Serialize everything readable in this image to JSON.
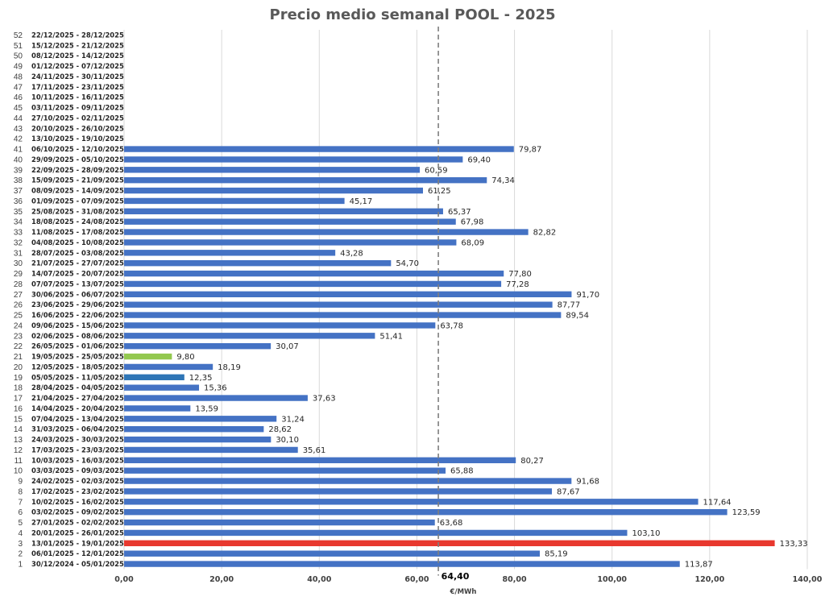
{
  "chart_data": {
    "type": "bar",
    "orientation": "horizontal",
    "title": "Precio medio semanal POOL - 2025",
    "xlabel": "€/MWh",
    "xlim": [
      0,
      140
    ],
    "x_ticks": [
      "0,00",
      "20,00",
      "40,00",
      "60,00",
      "80,00",
      "100,00",
      "120,00",
      "140,00"
    ],
    "grid": true,
    "legend": "none",
    "average": {
      "value": 64.4,
      "label": "64,40"
    },
    "colors": {
      "default": "#4472c4",
      "highlight_max": "#e8382e",
      "highlight_min": "#92c84f",
      "highlight_week19": "#2e75b6",
      "average_line": "#7f7f7f"
    },
    "weeks": [
      {
        "n": "52",
        "range": "22/12/2025 - 28/12/2025",
        "value": null,
        "label": ""
      },
      {
        "n": "51",
        "range": "15/12/2025 - 21/12/2025",
        "value": null,
        "label": ""
      },
      {
        "n": "50",
        "range": "08/12/2025 - 14/12/2025",
        "value": null,
        "label": ""
      },
      {
        "n": "49",
        "range": "01/12/2025 - 07/12/2025",
        "value": null,
        "label": ""
      },
      {
        "n": "48",
        "range": "24/11/2025 - 30/11/2025",
        "value": null,
        "label": ""
      },
      {
        "n": "47",
        "range": "17/11/2025 - 23/11/2025",
        "value": null,
        "label": ""
      },
      {
        "n": "46",
        "range": "10/11/2025 - 16/11/2025",
        "value": null,
        "label": ""
      },
      {
        "n": "45",
        "range": "03/11/2025 - 09/11/2025",
        "value": null,
        "label": ""
      },
      {
        "n": "44",
        "range": "27/10/2025 - 02/11/2025",
        "value": null,
        "label": ""
      },
      {
        "n": "43",
        "range": "20/10/2025 - 26/10/2025",
        "value": null,
        "label": ""
      },
      {
        "n": "42",
        "range": "13/10/2025 - 19/10/2025",
        "value": null,
        "label": ""
      },
      {
        "n": "41",
        "range": "06/10/2025 - 12/10/2025",
        "value": 79.87,
        "label": "79,87"
      },
      {
        "n": "40",
        "range": "29/09/2025 - 05/10/2025",
        "value": 69.4,
        "label": "69,40"
      },
      {
        "n": "39",
        "range": "22/09/2025 - 28/09/2025",
        "value": 60.59,
        "label": "60,59"
      },
      {
        "n": "38",
        "range": "15/09/2025 - 21/09/2025",
        "value": 74.34,
        "label": "74,34"
      },
      {
        "n": "37",
        "range": "08/09/2025 - 14/09/2025",
        "value": 61.25,
        "label": "61,25"
      },
      {
        "n": "36",
        "range": "01/09/2025 - 07/09/2025",
        "value": 45.17,
        "label": "45,17"
      },
      {
        "n": "35",
        "range": "25/08/2025 - 31/08/2025",
        "value": 65.37,
        "label": "65,37"
      },
      {
        "n": "34",
        "range": "18/08/2025 - 24/08/2025",
        "value": 67.98,
        "label": "67,98"
      },
      {
        "n": "33",
        "range": "11/08/2025 - 17/08/2025",
        "value": 82.82,
        "label": "82,82"
      },
      {
        "n": "32",
        "range": "04/08/2025 - 10/08/2025",
        "value": 68.09,
        "label": "68,09"
      },
      {
        "n": "31",
        "range": "28/07/2025 - 03/08/2025",
        "value": 43.28,
        "label": "43,28"
      },
      {
        "n": "30",
        "range": "21/07/2025 - 27/07/2025",
        "value": 54.7,
        "label": "54,70"
      },
      {
        "n": "29",
        "range": "14/07/2025 - 20/07/2025",
        "value": 77.8,
        "label": "77,80"
      },
      {
        "n": "28",
        "range": "07/07/2025 - 13/07/2025",
        "value": 77.28,
        "label": "77,28"
      },
      {
        "n": "27",
        "range": "30/06/2025 - 06/07/2025",
        "value": 91.7,
        "label": "91,70"
      },
      {
        "n": "26",
        "range": "23/06/2025 - 29/06/2025",
        "value": 87.77,
        "label": "87,77"
      },
      {
        "n": "25",
        "range": "16/06/2025 - 22/06/2025",
        "value": 89.54,
        "label": "89,54"
      },
      {
        "n": "24",
        "range": "09/06/2025 - 15/06/2025",
        "value": 63.78,
        "label": "63,78"
      },
      {
        "n": "23",
        "range": "02/06/2025 - 08/06/2025",
        "value": 51.41,
        "label": "51,41"
      },
      {
        "n": "22",
        "range": "26/05/2025 - 01/06/2025",
        "value": 30.07,
        "label": "30,07"
      },
      {
        "n": "21",
        "range": "19/05/2025 - 25/05/2025",
        "value": 9.8,
        "label": "9,80",
        "highlight": "min"
      },
      {
        "n": "20",
        "range": "12/05/2025 - 18/05/2025",
        "value": 18.19,
        "label": "18,19"
      },
      {
        "n": "19",
        "range": "05/05/2025 - 11/05/2025",
        "value": 12.35,
        "label": "12,35",
        "highlight": "week19"
      },
      {
        "n": "18",
        "range": "28/04/2025 - 04/05/2025",
        "value": 15.36,
        "label": "15,36"
      },
      {
        "n": "17",
        "range": "21/04/2025 - 27/04/2025",
        "value": 37.63,
        "label": "37,63"
      },
      {
        "n": "16",
        "range": "14/04/2025 - 20/04/2025",
        "value": 13.59,
        "label": "13,59"
      },
      {
        "n": "15",
        "range": "07/04/2025 - 13/04/2025",
        "value": 31.24,
        "label": "31,24"
      },
      {
        "n": "14",
        "range": "31/03/2025 - 06/04/2025",
        "value": 28.62,
        "label": "28,62"
      },
      {
        "n": "13",
        "range": "24/03/2025 - 30/03/2025",
        "value": 30.1,
        "label": "30,10"
      },
      {
        "n": "12",
        "range": "17/03/2025 - 23/03/2025",
        "value": 35.61,
        "label": "35,61"
      },
      {
        "n": "11",
        "range": "10/03/2025 - 16/03/2025",
        "value": 80.27,
        "label": "80,27"
      },
      {
        "n": "10",
        "range": "03/03/2025 - 09/03/2025",
        "value": 65.88,
        "label": "65,88"
      },
      {
        "n": "9",
        "range": "24/02/2025 - 02/03/2025",
        "value": 91.68,
        "label": "91,68"
      },
      {
        "n": "8",
        "range": "17/02/2025 - 23/02/2025",
        "value": 87.67,
        "label": "87,67"
      },
      {
        "n": "7",
        "range": "10/02/2025 - 16/02/2025",
        "value": 117.64,
        "label": "117,64"
      },
      {
        "n": "6",
        "range": "03/02/2025 - 09/02/2025",
        "value": 123.59,
        "label": "123,59"
      },
      {
        "n": "5",
        "range": "27/01/2025 - 02/02/2025",
        "value": 63.68,
        "label": "63,68"
      },
      {
        "n": "4",
        "range": "20/01/2025 - 26/01/2025",
        "value": 103.1,
        "label": "103,10"
      },
      {
        "n": "3",
        "range": "13/01/2025 - 19/01/2025",
        "value": 133.33,
        "label": "133,33",
        "highlight": "max"
      },
      {
        "n": "2",
        "range": "06/01/2025 - 12/01/2025",
        "value": 85.19,
        "label": "85,19"
      },
      {
        "n": "1",
        "range": "30/12/2024 - 05/01/2025",
        "value": 113.87,
        "label": "113,87"
      }
    ]
  }
}
